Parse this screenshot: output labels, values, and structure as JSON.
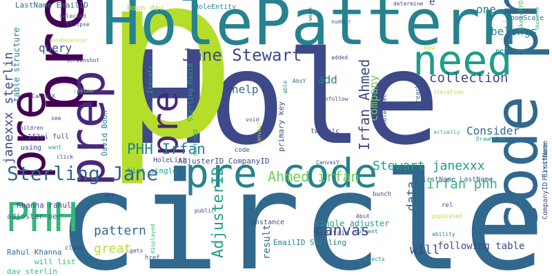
{
  "colors": {
    "background": "#ffffff",
    "palette": [
      "#440154",
      "#482878",
      "#3e4989",
      "#31688e",
      "#26828e",
      "#1f9e89",
      "#35b779",
      "#6ece58",
      "#b5de2b",
      "#fde725"
    ]
  },
  "words": {
    "hole": "Hole",
    "circle": "circle",
    "p": "p",
    "holepattern": "HolePattern",
    "pre_code": "pre code",
    "pre_top": "pre",
    "prep": "prep",
    "need": "need",
    "code_pre": "code pre",
    "pre_left": "pre",
    "pre_small": "pre",
    "phh": "PHH",
    "jane_stewart": "Jane Stewart",
    "sterling_jane": "Sterling Jane",
    "phh_irfan": "PHH Irfan",
    "stewart_janexxx": "Stewart janexxx",
    "ahmed_irfan": "Ahmed irfan",
    "irfan_phh": "irfan phh",
    "irfan_ahmed": "Irfan Ahmed",
    "janexxx_sterlin": "janexxx sterlin",
    "adjusterid": "AdjusterID",
    "canvas": "canvas",
    "pattern": "pattern",
    "collection": "collection",
    "consider": "Consider",
    "belongs": "belongs",
    "query": "query",
    "help": "help",
    "add": "add",
    "one": "one",
    "great": "great",
    "will_big": "will",
    "data": "data",
    "result": "result",
    "following_table": "following table",
    "company": "company",
    "table_structure": "table structure",
    "single_adjuster": "single adjuster",
    "lastname_emailid": "LastName EmailID",
    "boon_dav": "Boon dav",
    "holeentity": "HoleEntity",
    "zoomscale": "_ZoomScale",
    "sketchyo": "SketchYO",
    "per_company": "per company",
    "now": "now",
    "iteration": "iteration",
    "foreach": "foreach",
    "actually": "actually",
    "drawholes": "DrawHoles",
    "firstname": "FirstName",
    "companyid_firstname": "CompanyID FirstName",
    "firstname_lastname": "FirstName LastName",
    "bunch": "bunch",
    "rel": "rel",
    "populated": "populated",
    "ability": "ability",
    "objects": "objects",
    "current": "current",
    "certain": "certain",
    "absx": "AbsX",
    "instance": "instance",
    "emailid_sterling": "EmailID Sterling",
    "will_list": "will list",
    "dav_sterlin": "dav sterlin",
    "rahul_khanna_bottom": "Rahul Khanna",
    "class": "class",
    "href": "href",
    "gets": "gets",
    "displayed": "displayed",
    "public": "public",
    "wpf": "WPF",
    "adjuster_per": "adjuster per",
    "khanna_rahul": "Khanna rahul",
    "using": "using",
    "want": "want",
    "click": "click",
    "children": "Children",
    "fullx": "1f2ci full",
    "see": "see",
    "custom": "custom",
    "canvasx": "CanvasX",
    "screenshot": "screenshot",
    "holedecorator": "HoleDecorator",
    "ellipse": "Ellipse",
    "selected": "selected",
    "work": "work",
    "number": "number",
    "determine": "determine",
    "e": "e",
    "sketchyu": "SketchYU",
    "added": "added",
    "absy": "AbsY",
    "able": "able",
    "iterate": "Iterate",
    "sterling_david": "Sterling David",
    "david_boon": "David Boon",
    "list_single": "list single",
    "holelist": "HoleList",
    "adjusterid_companyid": "AdjusterID CompanyID",
    "sketchxo": "SketchXO",
    "code_small": "code",
    "void": "void",
    "canvasy_v": "canvasY",
    "primary_key": "primary key",
    "twitpic": "twitpic",
    "nofollow": "nofollow",
    "holelabel": "HoleLabel",
    "canvasy": "CanvasY"
  }
}
